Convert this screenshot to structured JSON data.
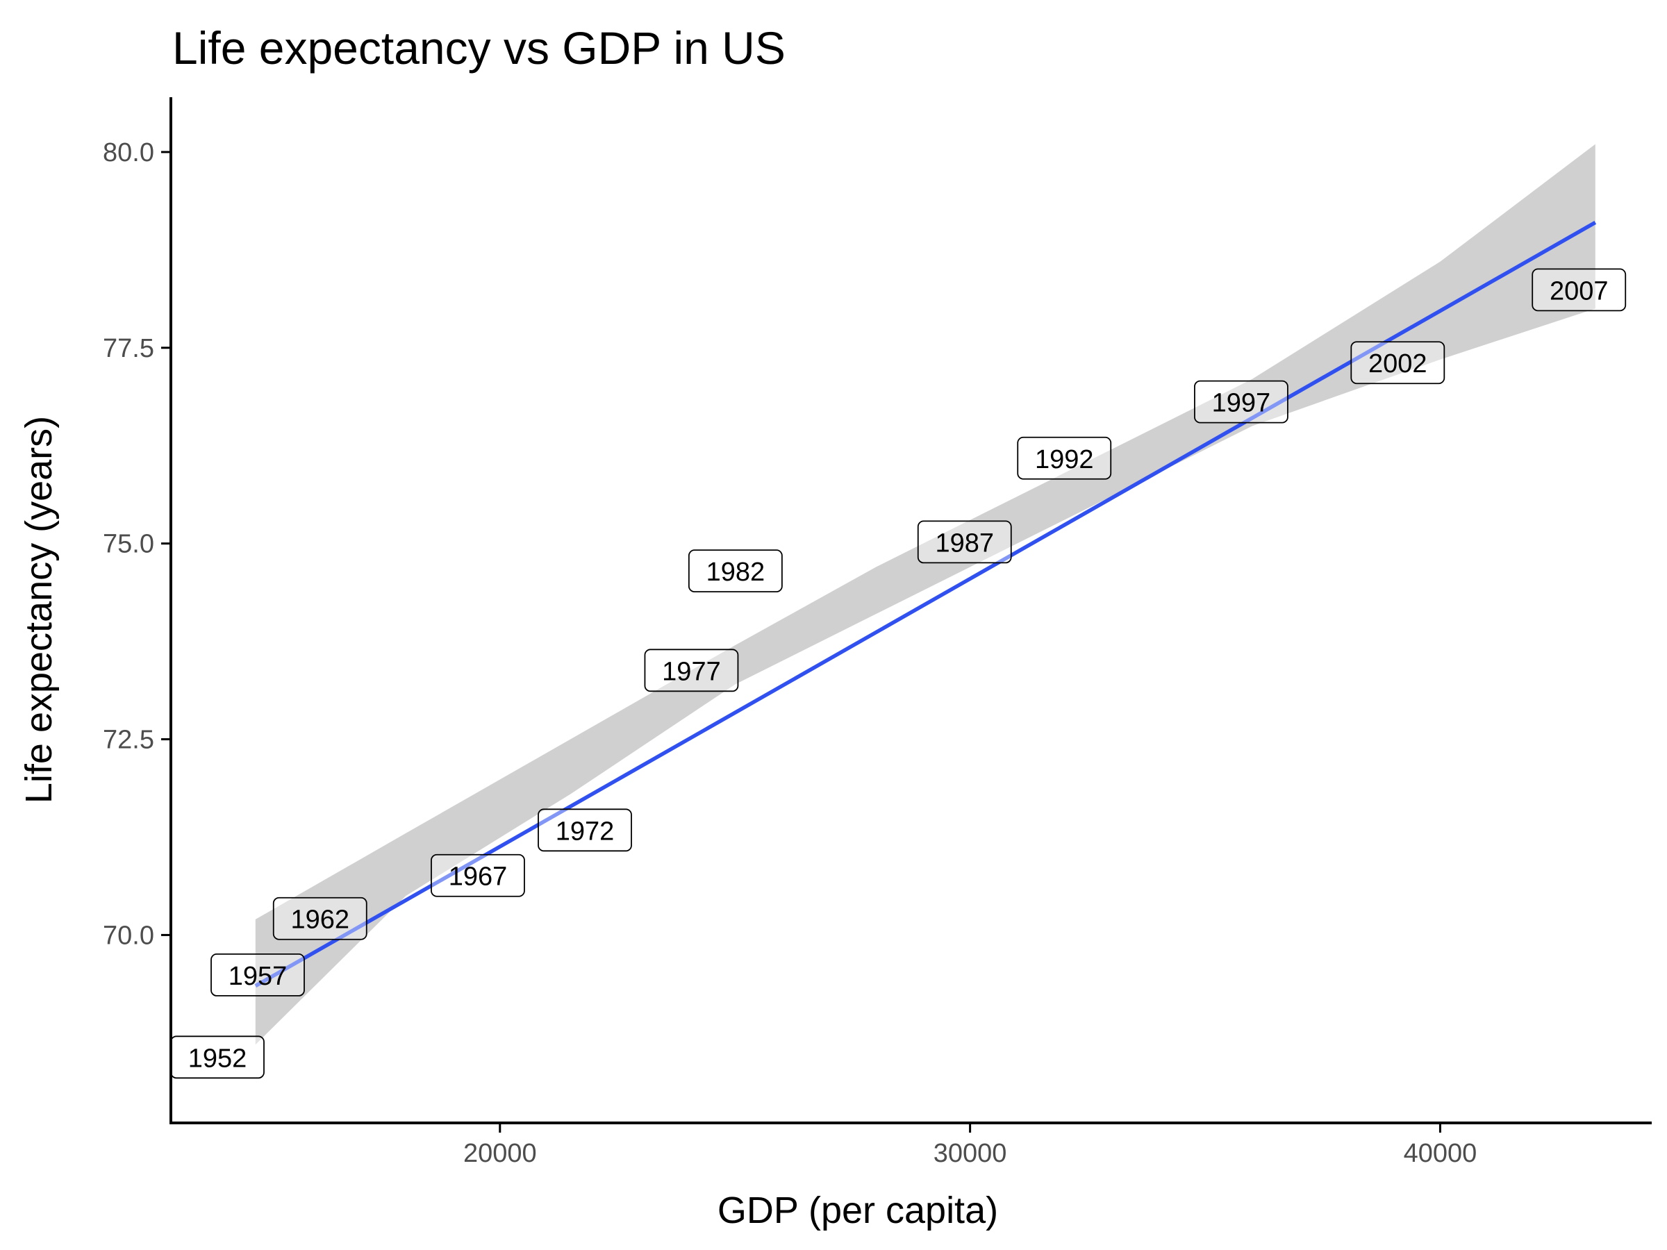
{
  "chart_data": {
    "type": "scatter",
    "title": "Life expectancy vs GDP in US",
    "xlabel": "GDP (per capita)",
    "ylabel": "Life expectancy (years)",
    "xlim": [
      13000,
      44500
    ],
    "ylim": [
      67.6,
      80.7
    ],
    "xticks": [
      20000,
      30000,
      40000
    ],
    "yticks": [
      70.0,
      72.5,
      75.0,
      77.5,
      80.0
    ],
    "xtick_labels": [
      "20000",
      "30000",
      "40000"
    ],
    "ytick_labels": [
      "70.0",
      "72.5",
      "75.0",
      "77.5",
      "80.0"
    ],
    "grid": false,
    "legend": "none",
    "points": [
      {
        "label": "1952",
        "x": 13990,
        "y": 68.44
      },
      {
        "label": "1957",
        "x": 14847,
        "y": 69.49
      },
      {
        "label": "1962",
        "x": 16173,
        "y": 70.21
      },
      {
        "label": "1967",
        "x": 19530,
        "y": 70.76
      },
      {
        "label": "1972",
        "x": 21806,
        "y": 71.34
      },
      {
        "label": "1977",
        "x": 24073,
        "y": 73.38
      },
      {
        "label": "1982",
        "x": 25010,
        "y": 74.65
      },
      {
        "label": "1987",
        "x": 29884,
        "y": 75.02
      },
      {
        "label": "1992",
        "x": 32004,
        "y": 76.09
      },
      {
        "label": "1997",
        "x": 35767,
        "y": 76.81
      },
      {
        "label": "2002",
        "x": 39097,
        "y": 77.31
      },
      {
        "label": "2007",
        "x": 42952,
        "y": 78.24
      }
    ],
    "trend": {
      "method": "linear",
      "x": [
        14800,
        43300
      ],
      "y": [
        69.35,
        79.1
      ],
      "band": {
        "x": [
          14800,
          18000,
          21500,
          25000,
          28000,
          30000,
          33000,
          36000,
          40000,
          43300
        ],
        "lower": [
          68.6,
          70.5,
          71.8,
          73.2,
          74.1,
          74.7,
          75.6,
          76.5,
          77.35,
          78.0
        ],
        "upper": [
          70.2,
          71.3,
          72.5,
          73.7,
          74.7,
          75.3,
          76.2,
          77.1,
          78.6,
          80.1
        ]
      }
    },
    "colors": {
      "trend_line": "#3050f0",
      "band": "#d0d0d0",
      "label_fill": "#ffffff",
      "label_border": "#000000",
      "axis": "#000000",
      "tick_text": "#4d4d4d"
    }
  }
}
